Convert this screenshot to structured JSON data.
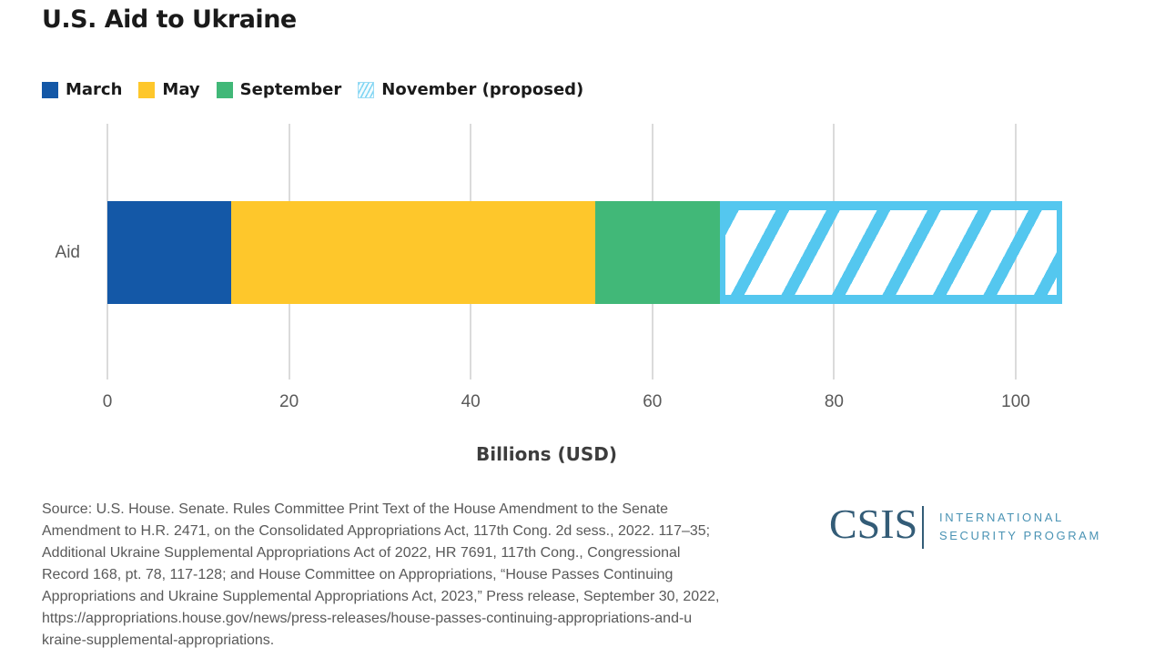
{
  "title": "U.S. Aid to Ukraine",
  "legend": {
    "items": [
      {
        "label": "March",
        "color": "#1458a7",
        "hatched": false
      },
      {
        "label": "May",
        "color": "#fec72b",
        "hatched": false
      },
      {
        "label": "September",
        "color": "#41b878",
        "hatched": false
      },
      {
        "label": "November (proposed)",
        "color": "#54c7ef",
        "hatched": true
      }
    ]
  },
  "chart_data": {
    "type": "bar",
    "orientation": "horizontal",
    "stacked": true,
    "categories": [
      "Aid"
    ],
    "series": [
      {
        "name": "March",
        "values": [
          13.6
        ],
        "color": "#1458a7",
        "pattern": "solid"
      },
      {
        "name": "May",
        "values": [
          40.1
        ],
        "color": "#fec72b",
        "pattern": "solid"
      },
      {
        "name": "September",
        "values": [
          13.7
        ],
        "color": "#41b878",
        "pattern": "solid"
      },
      {
        "name": "November (proposed)",
        "values": [
          37.7
        ],
        "color": "#54c7ef",
        "pattern": "diagonal-hatch"
      }
    ],
    "total": 105.1,
    "title": "U.S. Aid to Ukraine",
    "xlabel": "Billions (USD)",
    "ylabel": "",
    "x_ticks": [
      0,
      20,
      40,
      60,
      80,
      100
    ],
    "xlim": [
      0,
      105.1
    ],
    "grid": "vertical",
    "legend_position": "top"
  },
  "source_note": "Source: U.S. House. Senate. Rules Committee Print Text of the House Amendment to the Senate\nAmendment to H.R. 2471, on the Consolidated Appropriations Act, 117th Cong. 2d sess., 2022. 117–35;\nAdditional Ukraine Supplemental Appropriations Act of 2022, HR 7691, 117th Cong., Congressional\nRecord 168, pt. 78, 117-128; and House Committee on Appropriations, “House Passes Continuing\nAppropriations and Ukraine Supplemental Appropriations Act, 2023,” Press release, September 30, 2022,\nhttps://appropriations.house.gov/news/press-releases/house-passes-continuing-appropriations-and-u\nkraine-supplemental-appropriations.",
  "logo": {
    "wordmark": "CSIS",
    "program_line1": "INTERNATIONAL",
    "program_line2": "SECURITY PROGRAM"
  },
  "colors": {
    "march_blue": "#1458a7",
    "may_yellow": "#fec72b",
    "september_green": "#41b878",
    "november_light_blue": "#54c7ef",
    "gridline": "#dbdbdb",
    "axis_text": "#595959",
    "title_text": "#1a1a1a",
    "csis_navy": "#335c77",
    "program_blue": "#4a93b4"
  }
}
